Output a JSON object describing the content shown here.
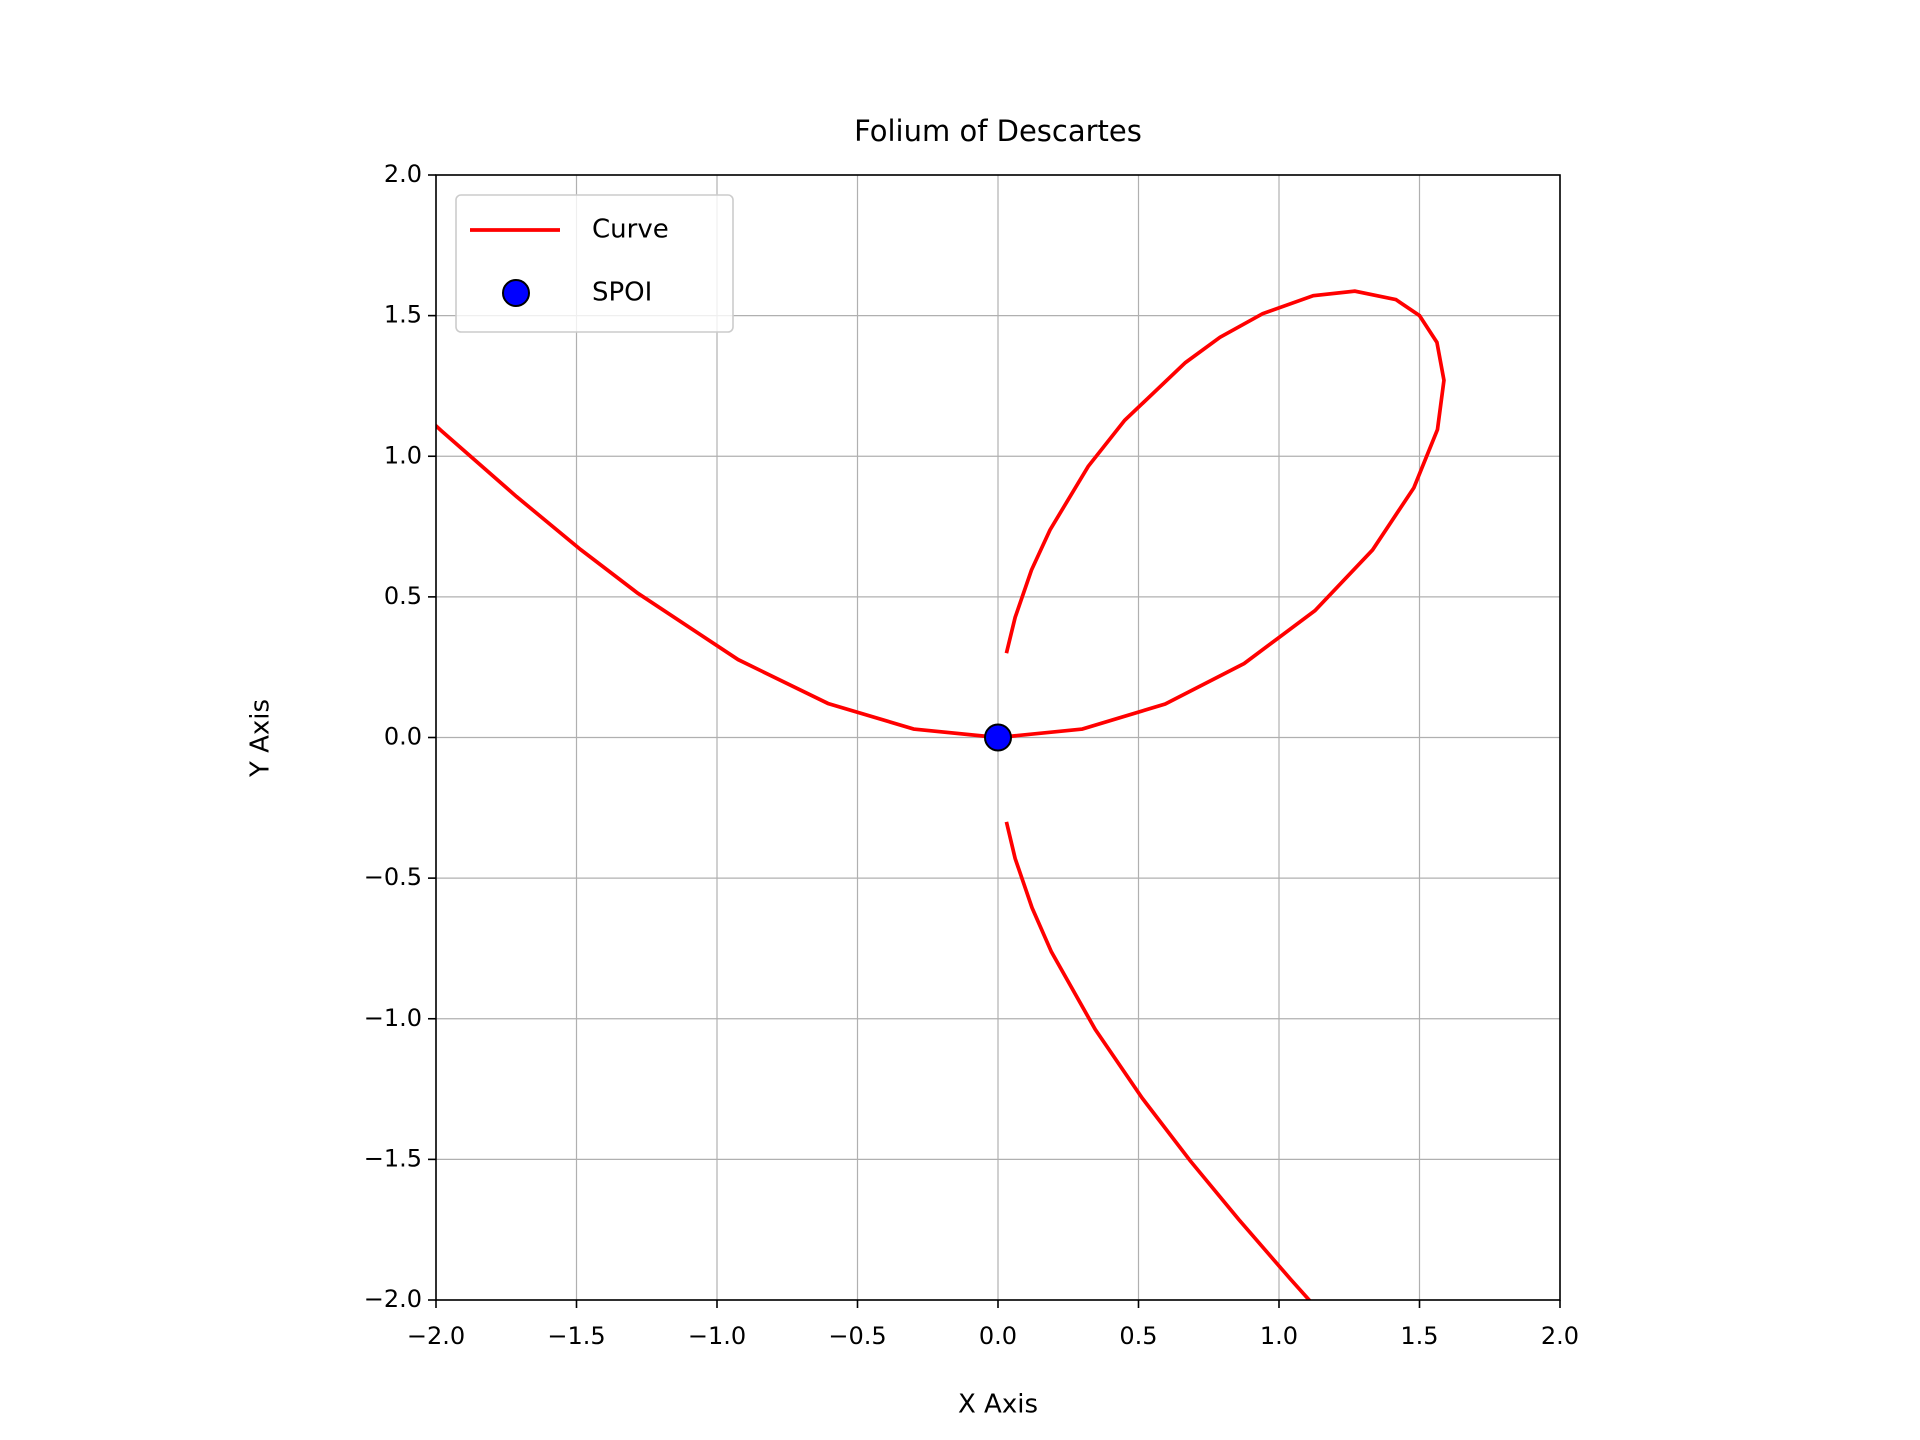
{
  "chart_data": {
    "type": "line",
    "title": "Folium of Descartes",
    "x_label": "X Axis",
    "y_label": "Y Axis",
    "grid": true,
    "legend": "upper left",
    "xlim": [
      -2,
      2
    ],
    "ylim": [
      -2,
      2
    ],
    "xticks": [
      {
        "value": -2,
        "label": "−2.0"
      },
      {
        "value": -1.5,
        "label": "−1.5"
      },
      {
        "value": -1,
        "label": "−1.0"
      },
      {
        "value": -0.5,
        "label": "−0.5"
      },
      {
        "value": 0,
        "label": "0.0"
      },
      {
        "value": 0.5,
        "label": "0.5"
      },
      {
        "value": 1,
        "label": "1.0"
      },
      {
        "value": 1.5,
        "label": "1.5"
      },
      {
        "value": 2,
        "label": "2.0"
      }
    ],
    "yticks": [
      {
        "value": -2,
        "label": "−2.0"
      },
      {
        "value": -1.5,
        "label": "−1.5"
      },
      {
        "value": -1,
        "label": "−1.0"
      },
      {
        "value": -0.5,
        "label": "−0.5"
      },
      {
        "value": 0,
        "label": "0.0"
      },
      {
        "value": 0.5,
        "label": "0.5"
      },
      {
        "value": 1,
        "label": "1.0"
      },
      {
        "value": 1.5,
        "label": "1.5"
      },
      {
        "value": 2,
        "label": "2.0"
      }
    ],
    "series": [
      {
        "name": "Curve",
        "type": "line",
        "color": "#ff0000",
        "x": [
          0.03,
          0.061,
          0.121,
          0.19,
          0.346,
          0.513,
          0.684,
          0.857,
          1.041,
          1.204,
          null,
          -2.296,
          -1.979,
          -1.714,
          -1.485,
          -1.282,
          -0.925,
          -0.605,
          -0.3,
          0,
          0.3,
          0.595,
          0.876,
          1.128,
          1.333,
          1.48,
          1.564,
          1.587,
          1.562,
          1.5,
          1.416,
          1.27,
          1.122,
          0.942,
          0.79,
          0.667,
          0.451,
          0.321,
          0.185,
          0.119,
          0.061,
          0.03
        ],
        "values": [
          -0.3,
          -0.43,
          -0.605,
          -0.762,
          -1.038,
          -1.282,
          -1.505,
          -1.714,
          -1.926,
          -2.108,
          null,
          1.378,
          1.089,
          0.857,
          0.668,
          0.513,
          0.277,
          0.121,
          0.03,
          0,
          0.03,
          0.119,
          0.263,
          0.451,
          0.667,
          0.888,
          1.095,
          1.27,
          1.405,
          1.5,
          1.557,
          1.587,
          1.571,
          1.507,
          1.423,
          1.333,
          1.128,
          0.964,
          0.738,
          0.595,
          0.427,
          0.3
        ]
      },
      {
        "name": "SPOI",
        "type": "scatter",
        "color": "#0000ff",
        "x": [
          0
        ],
        "values": [
          0
        ]
      }
    ]
  }
}
